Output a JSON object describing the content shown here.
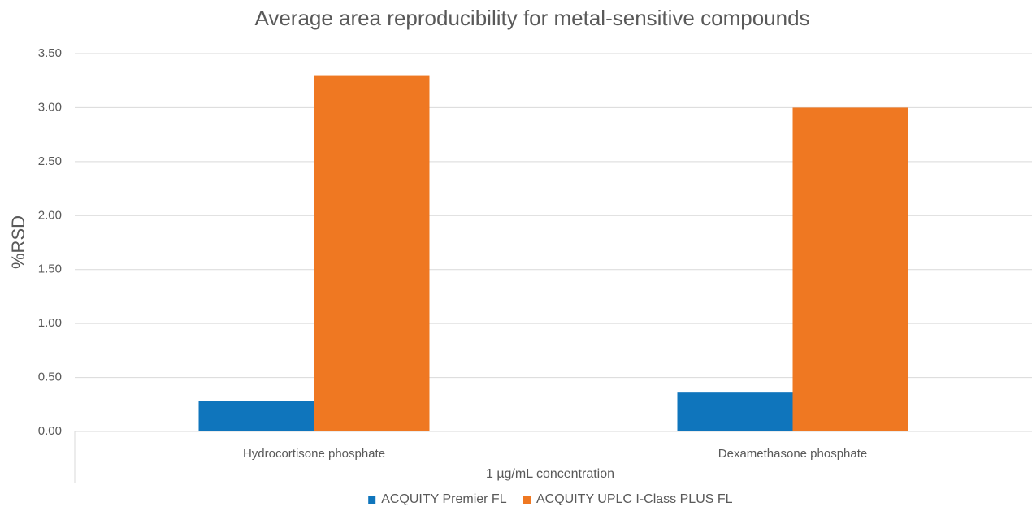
{
  "chart_data": {
    "type": "bar",
    "title": "Average area reproducibility for metal-sensitive compounds",
    "x_label": "1 µg/mL concentration",
    "y_label": "%RSD",
    "categories": [
      "Hydrocortisone phosphate",
      "Dexamethasone phosphate"
    ],
    "series": [
      {
        "name": "ACQUITY Premier FL",
        "color": "#0f75bc",
        "values": [
          0.28,
          0.36
        ]
      },
      {
        "name": "ACQUITY UPLC I-Class PLUS FL",
        "color": "#ef7822",
        "values": [
          3.3,
          3.0
        ]
      }
    ],
    "ylim": [
      0,
      3.5
    ],
    "yticks": [
      {
        "value": 0,
        "label": "0.00"
      },
      {
        "value": 0.5,
        "label": "0.50"
      },
      {
        "value": 1,
        "label": "1.00"
      },
      {
        "value": 1.5,
        "label": "1.50"
      },
      {
        "value": 2,
        "label": "2.00"
      },
      {
        "value": 2.5,
        "label": "2.50"
      },
      {
        "value": 3,
        "label": "3.00"
      },
      {
        "value": 3.5,
        "label": "3.50"
      }
    ],
    "grid": true,
    "legend": "bottom"
  }
}
